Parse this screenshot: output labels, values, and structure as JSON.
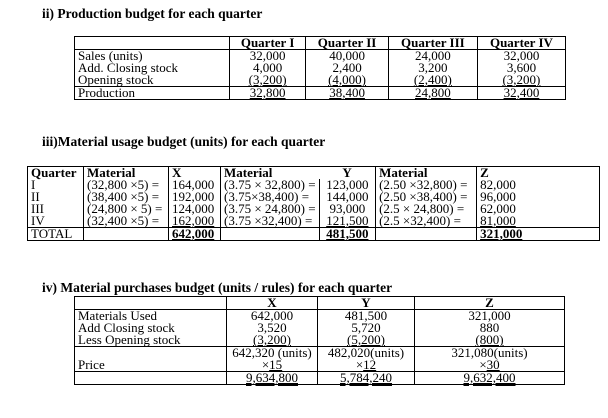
{
  "production": {
    "heading": "ii) Production budget for each quarter",
    "headers": [
      "",
      "Quarter I",
      "Quarter II",
      "Quarter III",
      "Quarter IV"
    ],
    "rows": [
      [
        "Sales (units)",
        "32,000",
        "40,000",
        "24,000",
        "32,000"
      ],
      [
        "Add. Closing stock",
        "4,000",
        "2,400",
        "3,200",
        "3,600"
      ],
      [
        "Opening stock",
        "(3,200)",
        "(4,000)",
        "(2,400)",
        "(3,200)"
      ],
      [
        "Production",
        "32,800",
        "38,400",
        "24,800",
        "32,400"
      ]
    ]
  },
  "usage": {
    "heading": "iii)Material usage budget (units) for each quarter",
    "headers": [
      "Quarter",
      "Material",
      "X",
      "Material",
      "Y",
      "Material",
      "Z"
    ],
    "rows": [
      [
        "I",
        "(32,800 ×5) =",
        "164,000",
        "(3.75 × 32,800) =",
        "123,000",
        "(2.50 ×32,800) =",
        "82,000"
      ],
      [
        "II",
        "(38,400 ×5) =",
        "192,000",
        "(3.75×38,400) =",
        "144,000",
        "(2.50 ×38,400) =",
        "96,000"
      ],
      [
        "III",
        "(24,800 × 5) =",
        "124,000",
        "(3.75 × 24,800) =",
        "93,000",
        "(2.5 × 24,800) =",
        "62,000"
      ],
      [
        "IV",
        "(32,400 ×5) =",
        "162,000",
        "(3.75 ×32,400) =",
        "121,500",
        "(2.5 ×32,400) =",
        "81,000"
      ]
    ],
    "total": [
      "TOTAL",
      "",
      "642,000",
      "",
      "481,500",
      "",
      "321,000"
    ]
  },
  "purchases": {
    "heading": "iv)  Material purchases budget (units / rules) for each quarter",
    "headers": [
      "",
      "X",
      "Y",
      "Z"
    ],
    "rows": [
      [
        "Materials Used",
        "642,000",
        "481,500",
        "321,000"
      ],
      [
        "Add Closing stock",
        "3,520",
        "5,720",
        "880"
      ],
      [
        "Less Opening stock",
        "(3,200)",
        "(5,200)",
        "(800)"
      ]
    ],
    "units": [
      "",
      "642,320 (units)",
      "482,020(units)",
      "321,080(units)"
    ],
    "price": [
      "Price",
      "15",
      "12",
      "30"
    ],
    "price_prefix": "×",
    "total": [
      "",
      "9,634,800",
      "5,784,240",
      "9,632,400"
    ]
  }
}
